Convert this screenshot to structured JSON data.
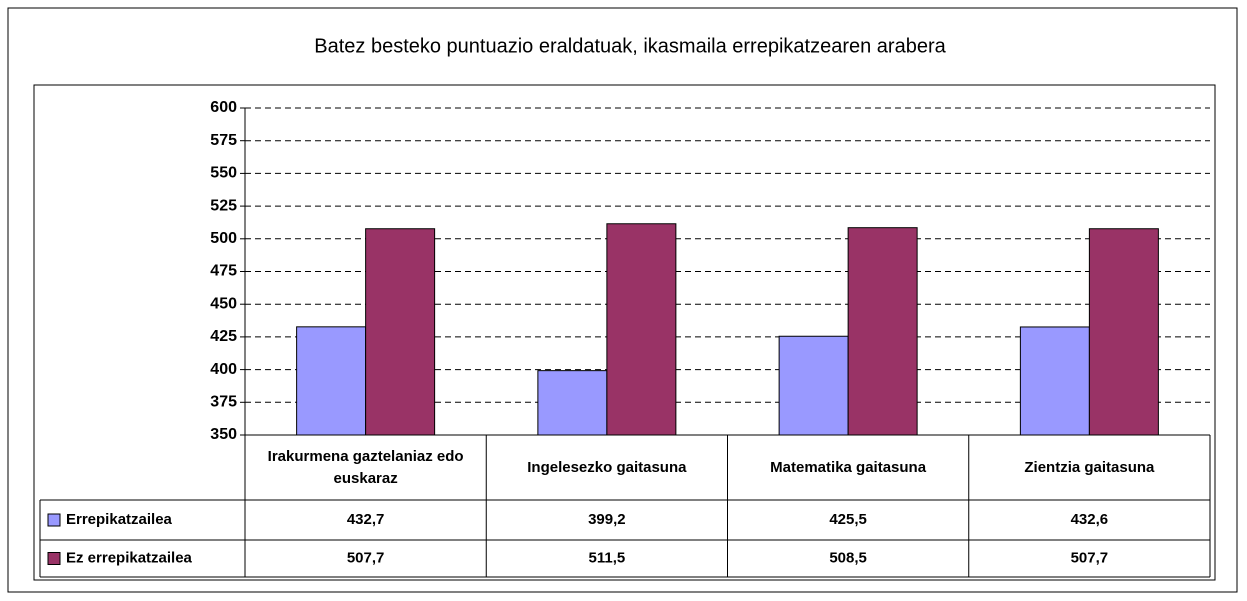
{
  "chart_data": {
    "type": "bar",
    "title": "Batez besteko puntuazio eraldatuak, ikasmaila errepikatzearen arabera",
    "categories": [
      "Irakurmena gaztelaniaz edo euskaraz",
      "Ingelesezko gaitasuna",
      "Matematika gaitasuna",
      "Zientzia gaitasuna"
    ],
    "series": [
      {
        "name": "Errepikatzailea",
        "color": "#9999ff",
        "values": [
          432.7,
          399.2,
          425.5,
          432.6
        ],
        "value_labels": [
          "432,7",
          "399,2",
          "425,5",
          "432,6"
        ]
      },
      {
        "name": "Ez errepikatzailea",
        "color": "#993366",
        "values": [
          507.7,
          511.5,
          508.5,
          507.7
        ],
        "value_labels": [
          "507,7",
          "511,5",
          "508,5",
          "507,7"
        ]
      }
    ],
    "ylim": [
      350,
      600
    ],
    "yticks": [
      350,
      375,
      400,
      425,
      450,
      475,
      500,
      525,
      550,
      575,
      600
    ],
    "grid": true
  }
}
